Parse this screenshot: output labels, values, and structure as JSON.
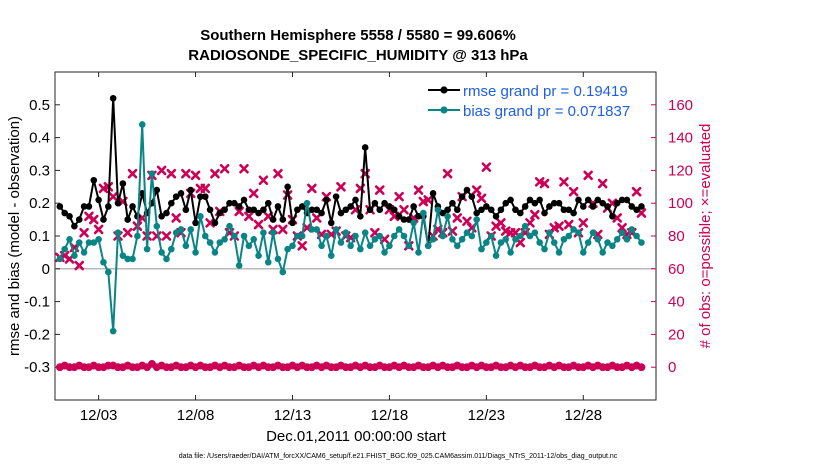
{
  "chart_data": {
    "type": "line",
    "title_line1": "Southern Hemisphere 5558 / 5580 = 99.606%",
    "title_line2": "RADIOSONDE_SPECIFIC_HUMIDITY @ 313 hPa",
    "xlabel": "Dec.01,2011 00:00:00 start",
    "ylabel_left": "rmse and bias (model - observation)",
    "ylabel_right": "# of obs: o=possible; ×=evaluated",
    "footnote": "data file: /Users/raeder/DAI/ATM_forcXX/CAM6_setup/f.e21.FHIST_BGC.f09_025.CAM6assim.011/Diags_NTrS_2011-12/obs_diag_output.nc",
    "x_range": [
      0.75,
      31.75
    ],
    "ylim_left": [
      -0.4,
      0.6
    ],
    "ylim_right": [
      -20,
      180
    ],
    "x_ticks": [
      {
        "value": 3,
        "label": "12/03"
      },
      {
        "value": 8,
        "label": "12/08"
      },
      {
        "value": 13,
        "label": "12/13"
      },
      {
        "value": 18,
        "label": "12/18"
      },
      {
        "value": 23,
        "label": "12/23"
      },
      {
        "value": 28,
        "label": "12/28"
      }
    ],
    "y_ticks_left": [
      {
        "value": -0.3,
        "label": "-0.3"
      },
      {
        "value": -0.2,
        "label": "-0.2"
      },
      {
        "value": -0.1,
        "label": "-0.1"
      },
      {
        "value": 0,
        "label": "0"
      },
      {
        "value": 0.1,
        "label": "0.1"
      },
      {
        "value": 0.2,
        "label": "0.2"
      },
      {
        "value": 0.3,
        "label": "0.3"
      },
      {
        "value": 0.4,
        "label": "0.4"
      },
      {
        "value": 0.5,
        "label": "0.5"
      }
    ],
    "y_ticks_right": [
      {
        "value": 0,
        "label": "0"
      },
      {
        "value": 20,
        "label": "20"
      },
      {
        "value": 40,
        "label": "40"
      },
      {
        "value": 60,
        "label": "60"
      },
      {
        "value": 80,
        "label": "80"
      },
      {
        "value": 100,
        "label": "100"
      },
      {
        "value": 120,
        "label": "120"
      },
      {
        "value": 140,
        "label": "140"
      },
      {
        "value": 160,
        "label": "160"
      }
    ],
    "x_start": 1.0,
    "x_step": 0.25,
    "series": [
      {
        "name": "rmse",
        "legend": "rmse grand pr = 0.19419",
        "color": "#000000",
        "axis": "left",
        "values": [
          0.19,
          0.17,
          0.16,
          0.13,
          0.15,
          0.19,
          0.19,
          0.27,
          0.21,
          0.15,
          0.19,
          0.52,
          0.2,
          0.26,
          0.15,
          0.19,
          0.16,
          0.23,
          0.17,
          0.2,
          0.24,
          0.16,
          0.17,
          0.2,
          0.22,
          0.23,
          0.18,
          0.24,
          0.14,
          0.22,
          0.22,
          0.18,
          0.14,
          0.17,
          0.18,
          0.2,
          0.2,
          0.19,
          0.21,
          0.18,
          0.18,
          0.17,
          0.18,
          0.2,
          0.15,
          0.19,
          0.15,
          0.25,
          0.14,
          0.18,
          0.19,
          0.17,
          0.18,
          0.18,
          0.17,
          0.21,
          0.14,
          0.22,
          0.17,
          0.18,
          0.19,
          0.21,
          0.16,
          0.37,
          0.18,
          0.2,
          0.18,
          0.2,
          0.19,
          0.18,
          0.16,
          0.15,
          0.15,
          0.19,
          0.16,
          0.16,
          0.07,
          0.23,
          0.19,
          0.17,
          0.18,
          0.2,
          0.18,
          0.22,
          0.24,
          0.22,
          0.17,
          0.18,
          0.19,
          0.18,
          0.16,
          0.18,
          0.2,
          0.21,
          0.18,
          0.17,
          0.19,
          0.21,
          0.2,
          0.21,
          0.17,
          0.19,
          0.2,
          0.2,
          0.18,
          0.18,
          0.17,
          0.21,
          0.19,
          0.21,
          0.19,
          0.21,
          0.2,
          0.19,
          0.16,
          0.2,
          0.21,
          0.21,
          0.19,
          0.18,
          0.19
        ]
      },
      {
        "name": "bias",
        "legend": "bias grand pr = 0.071837",
        "color": "#0a8585",
        "axis": "left",
        "values": [
          0.03,
          0.06,
          0.09,
          0.04,
          0.08,
          0.05,
          0.08,
          0.08,
          0.09,
          0.02,
          -0.01,
          -0.19,
          0.11,
          0.04,
          0.03,
          0.03,
          0.1,
          0.44,
          0.06,
          0.29,
          0.13,
          0.05,
          0.03,
          0.06,
          0.11,
          0.12,
          0.07,
          0.12,
          0.05,
          0.16,
          0.1,
          0.08,
          0.05,
          0.08,
          0.09,
          0.13,
          0.1,
          0.01,
          0.1,
          0.07,
          0.09,
          0.04,
          0.11,
          0.02,
          0.11,
          0.03,
          -0.01,
          0.06,
          0.07,
          0.1,
          0.1,
          0.2,
          0.12,
          0.12,
          0.07,
          0.1,
          0.04,
          0.12,
          0.08,
          0.11,
          0.07,
          0.1,
          0.06,
          0.11,
          0.07,
          0.09,
          0.1,
          0.05,
          0.07,
          0.1,
          0.12,
          0.1,
          0.07,
          0.14,
          0.05,
          0.17,
          0.07,
          0.09,
          0.18,
          0.1,
          0.16,
          0.09,
          0.07,
          0.09,
          0.11,
          0.1,
          0.15,
          0.06,
          0.08,
          0.1,
          0.04,
          0.08,
          0.09,
          0.05,
          0.09,
          0.1,
          0.13,
          0.1,
          0.11,
          0.08,
          0.06,
          0.11,
          0.08,
          0.05,
          0.09,
          0.1,
          0.12,
          0.11,
          0.05,
          0.08,
          0.11,
          0.09,
          0.05,
          0.08,
          0.07,
          0.09,
          0.11,
          0.09,
          0.12,
          0.1,
          0.08
        ]
      },
      {
        "name": "possible",
        "legend": "",
        "color": "#cc0055",
        "axis": "right",
        "marker": "o",
        "values": [
          0,
          1,
          0,
          0,
          1,
          0,
          0,
          1,
          0,
          0,
          1,
          1,
          0,
          0,
          1,
          0,
          0,
          1,
          0,
          2,
          0,
          1,
          0,
          0,
          1,
          0,
          0,
          1,
          0,
          1,
          0,
          0,
          1,
          0,
          1,
          0,
          0,
          1,
          0,
          0,
          1,
          0,
          1,
          0,
          0,
          1,
          0,
          0,
          1,
          0,
          1,
          0,
          0,
          1,
          0,
          1,
          0,
          0,
          1,
          0,
          0,
          1,
          0,
          1,
          0,
          0,
          1,
          0,
          0,
          1,
          0,
          1,
          0,
          0,
          1,
          0,
          0,
          1,
          0,
          1,
          0,
          0,
          1,
          0,
          0,
          1,
          0,
          1,
          0,
          0,
          1,
          0,
          0,
          1,
          0,
          1,
          0,
          0,
          1,
          0,
          0,
          1,
          0,
          1,
          0,
          0,
          1,
          0,
          0,
          1,
          0,
          1,
          0,
          0,
          1,
          0,
          0,
          1,
          0,
          1,
          0
        ]
      },
      {
        "name": "evaluated",
        "legend": "",
        "color": "#cc0055",
        "axis": "right",
        "marker": "x",
        "values": [
          67,
          68,
          66,
          73,
          62,
          82,
          92,
          90,
          84,
          109,
          110,
          104,
          80,
          101,
          82,
          118,
          86,
          91,
          80,
          117,
          80,
          120,
          80,
          118,
          91,
          82,
          118,
          106,
          117,
          109,
          109,
          88,
          118,
          95,
          121,
          82,
          80,
          95,
          121,
          92,
          106,
          87,
          114,
          92,
          84,
          118,
          84,
          105,
          90,
          80,
          74,
          85,
          109,
          91,
          81,
          104,
          81,
          83,
          110,
          80,
          79,
          96,
          109,
          118,
          96,
          82,
          108,
          78,
          96,
          92,
          104,
          96,
          74,
          91,
          108,
          101,
          102,
          80,
          84,
          82,
          118,
          83,
          91,
          104,
          89,
          85,
          108,
          103,
          122,
          80,
          86,
          88,
          83,
          82,
          82,
          76,
          82,
          88,
          93,
          113,
          112,
          81,
          85,
          86,
          113,
          87,
          107,
          82,
          88,
          117,
          100,
          81,
          112,
          97,
          100,
          91,
          85,
          81,
          82,
          107,
          94
        ]
      }
    ]
  }
}
